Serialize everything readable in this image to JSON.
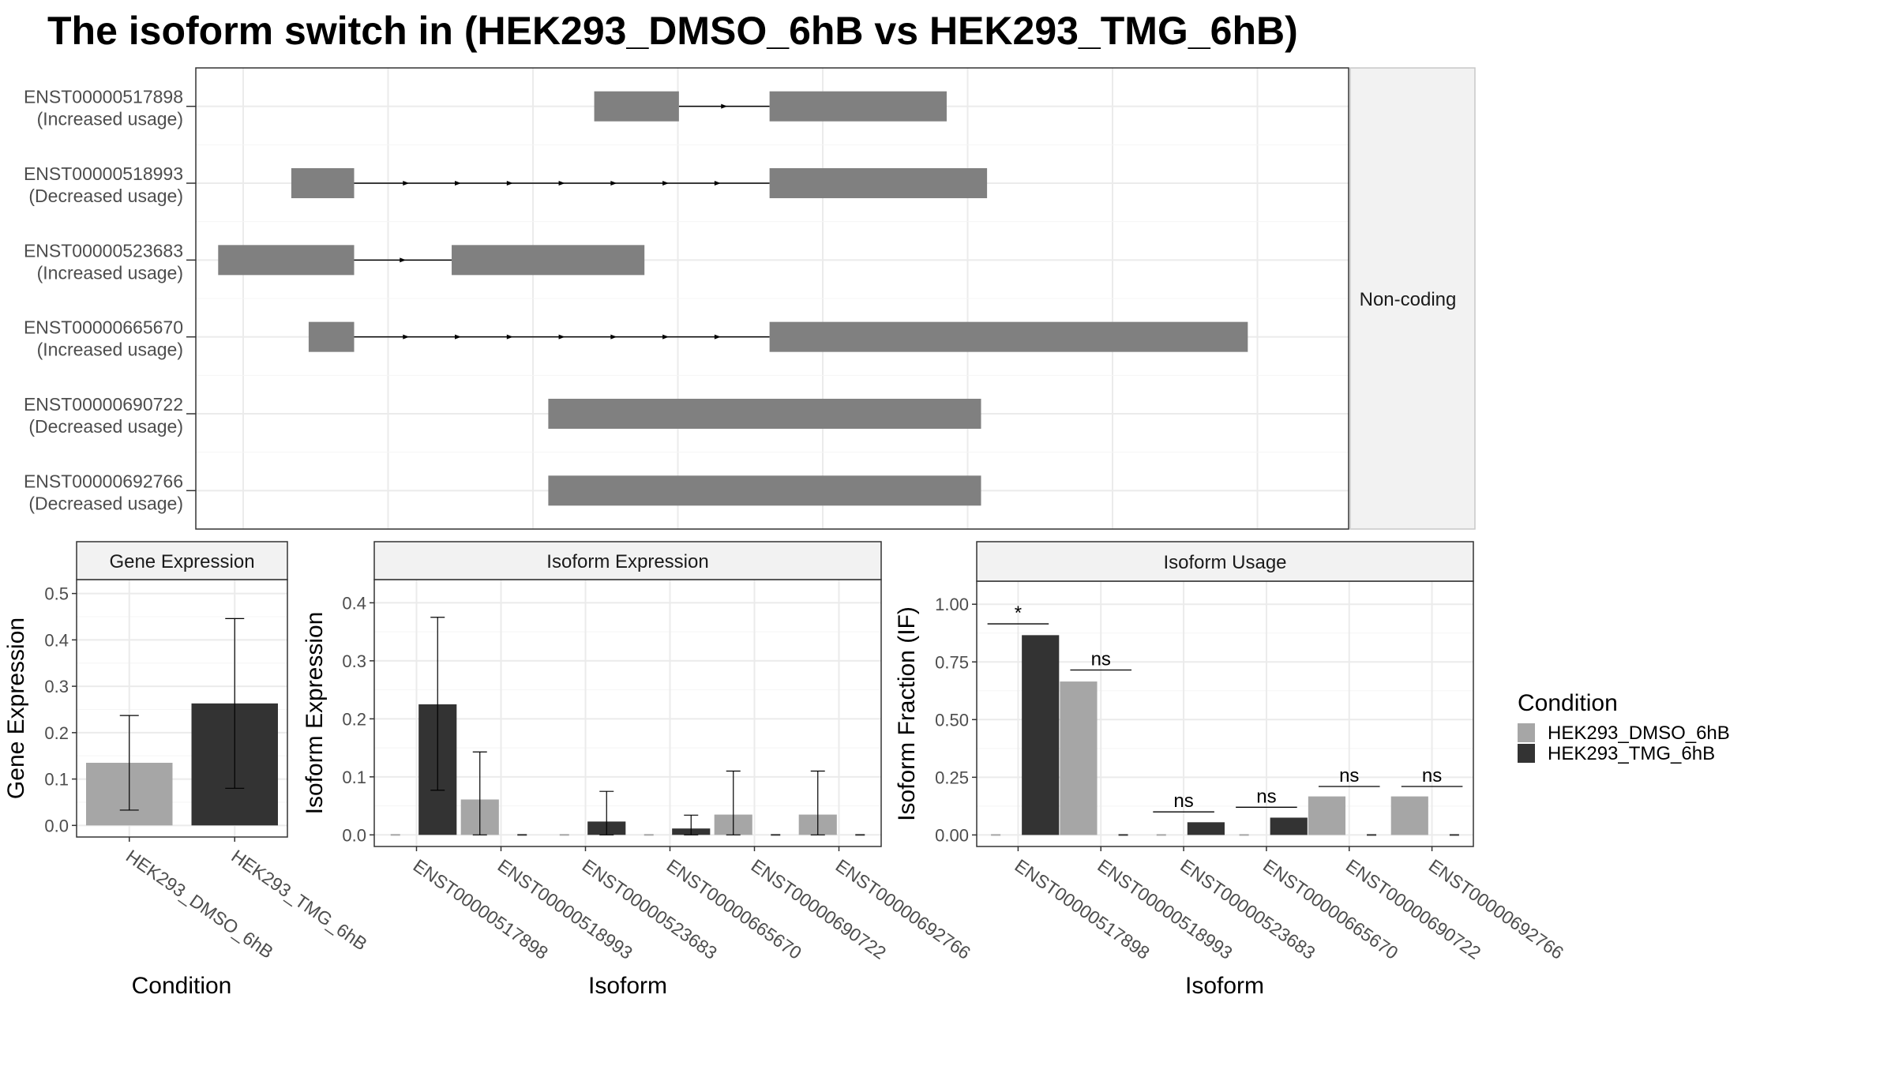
{
  "title": "The isoform switch in  (HEK293_DMSO_6hB vs HEK293_TMG_6hB)",
  "colors": {
    "dmso": "#a6a6a6",
    "tmg": "#333333",
    "exon": "#808080",
    "grid": "#ebebeb",
    "frame": "#333333",
    "strip": "#f2f2f2"
  },
  "chart_data": [
    {
      "type": "gene-structure",
      "panel": "isoform-structure",
      "strip_label": "Non-coding",
      "grid": true,
      "x_ticks_count": 8,
      "transcripts": [
        {
          "id": "ENST00000517898",
          "status": "(Increased usage)",
          "exons": [
            [
              0.2666,
              0.3413
            ],
            [
              0.4212,
              0.5774
            ]
          ],
          "arrows": 1
        },
        {
          "id": "ENST00000518993",
          "status": "(Decreased usage)",
          "exons": [
            [
              -0.0005,
              0.0549
            ],
            [
              0.4212,
              0.613
            ]
          ],
          "arrows": 7
        },
        {
          "id": "ENST00000523683",
          "status": "(Increased usage)",
          "exons": [
            [
              -0.065,
              0.0549
            ],
            [
              0.1409,
              0.3109
            ]
          ],
          "arrows": 1
        },
        {
          "id": "ENST00000665670",
          "status": "(Increased usage)",
          "exons": [
            [
              0.0148,
              0.0549
            ],
            [
              0.4212,
              0.8429
            ]
          ],
          "arrows": 7
        },
        {
          "id": "ENST00000690722",
          "status": "(Decreased usage)",
          "exons": [
            [
              0.2261,
              0.6077
            ]
          ],
          "arrows": 0
        },
        {
          "id": "ENST00000692766",
          "status": "(Decreased usage)",
          "exons": [
            [
              0.2261,
              0.6077
            ]
          ],
          "arrows": 0
        }
      ]
    },
    {
      "type": "bar",
      "panel": "gene-expression",
      "strip_label": "Gene Expression",
      "xlabel": "Condition",
      "ylabel": "Gene Expression",
      "ylim": [
        -0.025,
        0.53
      ],
      "yticks": [
        "0.0",
        "0.1",
        "0.2",
        "0.3",
        "0.4",
        "0.5"
      ],
      "categories": [
        "HEK293_DMSO_6hB",
        "HEK293_TMG_6hB"
      ],
      "values": [
        0.135,
        0.263
      ],
      "error_low": [
        0.033,
        0.08
      ],
      "error_high": [
        0.237,
        0.446
      ],
      "color_keys": [
        "dmso",
        "tmg"
      ]
    },
    {
      "type": "bar",
      "panel": "isoform-expression",
      "strip_label": "Isoform Expression",
      "xlabel": "Isoform",
      "ylabel": "Isoform Expression",
      "ylim": [
        -0.02,
        0.44
      ],
      "yticks": [
        "0.0",
        "0.1",
        "0.2",
        "0.3",
        "0.4"
      ],
      "categories": [
        "ENST00000517898",
        "ENST00000518993",
        "ENST00000523683",
        "ENST00000665670",
        "ENST00000690722",
        "ENST00000692766"
      ],
      "series": [
        {
          "name": "HEK293_DMSO_6hB",
          "values": [
            0.0,
            0.061,
            0.0,
            0.0,
            0.035,
            0.035
          ],
          "error_low": [
            null,
            0.0,
            null,
            null,
            0.0,
            0.0
          ],
          "error_high": [
            null,
            0.143,
            null,
            null,
            0.11,
            0.11
          ]
        },
        {
          "name": "HEK293_TMG_6hB",
          "values": [
            0.225,
            0.0,
            0.023,
            0.011,
            0.0,
            0.0
          ],
          "error_low": [
            0.077,
            null,
            0.0,
            0.0,
            null,
            null
          ],
          "error_high": [
            0.375,
            null,
            0.075,
            0.034,
            null,
            null
          ]
        }
      ]
    },
    {
      "type": "bar",
      "panel": "isoform-usage",
      "strip_label": "Isoform Usage",
      "xlabel": "Isoform",
      "ylabel": "Isoform Fraction (IF)",
      "ylim": [
        -0.05,
        1.1
      ],
      "yticks": [
        "0.00",
        "0.25",
        "0.50",
        "0.75",
        "1.00"
      ],
      "categories": [
        "ENST00000517898",
        "ENST00000518993",
        "ENST00000523683",
        "ENST00000665670",
        "ENST00000690722",
        "ENST00000692766"
      ],
      "series": [
        {
          "name": "HEK293_DMSO_6hB",
          "values": [
            0.0,
            0.665,
            0.0,
            0.0,
            0.167,
            0.167
          ]
        },
        {
          "name": "HEK293_TMG_6hB",
          "values": [
            0.866,
            0.0,
            0.055,
            0.075,
            0.0,
            0.0
          ]
        }
      ],
      "significance": [
        "*",
        "ns",
        "ns",
        "ns",
        "ns",
        "ns"
      ],
      "significance_y": [
        0.915,
        0.715,
        0.1,
        0.12,
        0.21,
        0.21
      ]
    }
  ],
  "legend": {
    "title": "Condition",
    "placement": "right",
    "entries": [
      {
        "label": "HEK293_DMSO_6hB",
        "color_key": "dmso"
      },
      {
        "label": "HEK293_TMG_6hB",
        "color_key": "tmg"
      }
    ]
  }
}
